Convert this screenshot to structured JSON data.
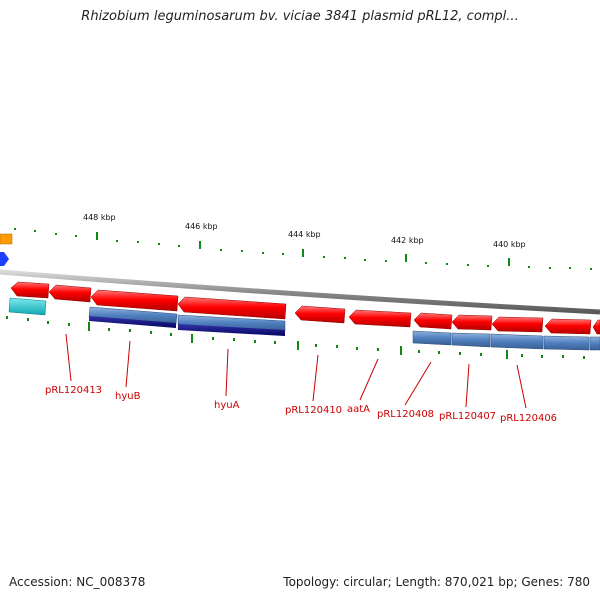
{
  "title": "Rhizobium leguminosarum bv. viciae 3841 plasmid pRL12, compl...",
  "footer": {
    "accession": "Accession: NC_008378",
    "summary": "Topology: circular; Length: 870,021 bp; Genes: 780"
  },
  "colors": {
    "backbone": "#8a8a8a",
    "tick": "#118811",
    "gene_forward": "#ff0000",
    "gene_reverse_highlight": "#4f7fbf",
    "gene_dark": "#0a0a7a",
    "gene_cyan": "#17c0c8",
    "gene_orange": "#ff9900",
    "gene_blue": "#1f3fff",
    "label": "#cc0000"
  },
  "scale": {
    "unit": "kbp",
    "ticks": [
      {
        "kbp": 448,
        "label": "448 kbp"
      },
      {
        "kbp": 446,
        "label": "446 kbp"
      },
      {
        "kbp": 444,
        "label": "444 kbp"
      },
      {
        "kbp": 442,
        "label": "442 kbp"
      },
      {
        "kbp": 440,
        "label": "440 kbp"
      }
    ]
  },
  "gene_labels": [
    "pRL120413",
    "hyuB",
    "hyuA",
    "pRL120410",
    "aatA",
    "pRL120408",
    "pRL120407",
    "pRL120406"
  ]
}
